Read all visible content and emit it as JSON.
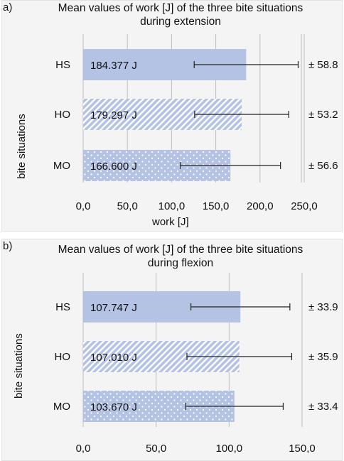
{
  "panels": [
    {
      "letter": "a)",
      "title_line1": "Mean values of work [J] of the three bite situations",
      "title_line2": "during extension",
      "ylabel": "bite situations",
      "xlabel": "work [J]"
    },
    {
      "letter": "b)",
      "title_line1": "Mean values of work [J] of the three bite situations",
      "title_line2": "during flexion",
      "ylabel": "bite situations",
      "xlabel": ""
    }
  ],
  "colors": {
    "bar_fill": "#b4c2e4",
    "grid": "#bdbdbd",
    "error_bar": "#222222"
  },
  "chart_data": [
    {
      "type": "bar",
      "orientation": "horizontal",
      "title": "Mean values of work [J] of the three bite situations during extension",
      "xlabel": "work [J]",
      "ylabel": "bite situations",
      "categories": [
        "HS",
        "HO",
        "MO"
      ],
      "values": [
        184.377,
        179.297,
        166.6
      ],
      "value_labels": [
        "184.377 J",
        "179.297 J",
        "166.600 J"
      ],
      "sd": [
        58.8,
        53.2,
        56.6
      ],
      "sd_labels": [
        "± 58.8",
        "± 53.2",
        "± 56.6"
      ],
      "patterns": [
        "solid",
        "diagonal-stripes",
        "dots"
      ],
      "xlim": [
        0,
        250
      ],
      "xticks": [
        0,
        50,
        100,
        150,
        200,
        250
      ],
      "xtick_labels": [
        "0,0",
        "50,0",
        "100,0",
        "150,0",
        "200,0",
        "250,0"
      ],
      "grid": true
    },
    {
      "type": "bar",
      "orientation": "horizontal",
      "title": "Mean values of work [J] of the three bite situations during flexion",
      "xlabel": "",
      "ylabel": "bite situations",
      "categories": [
        "HS",
        "HO",
        "MO"
      ],
      "values": [
        107.747,
        107.01,
        103.67
      ],
      "value_labels": [
        "107.747 J",
        "107.010 J",
        "103.670 J"
      ],
      "sd": [
        33.9,
        35.9,
        33.4
      ],
      "sd_labels": [
        "± 33.9",
        "± 35.9",
        "± 33.4"
      ],
      "patterns": [
        "solid",
        "diagonal-stripes",
        "dots"
      ],
      "xlim": [
        0,
        150
      ],
      "xticks": [
        0,
        50,
        100,
        150
      ],
      "xtick_labels": [
        "0,0",
        "50,0",
        "100,0",
        "150,0"
      ],
      "grid": true
    }
  ]
}
